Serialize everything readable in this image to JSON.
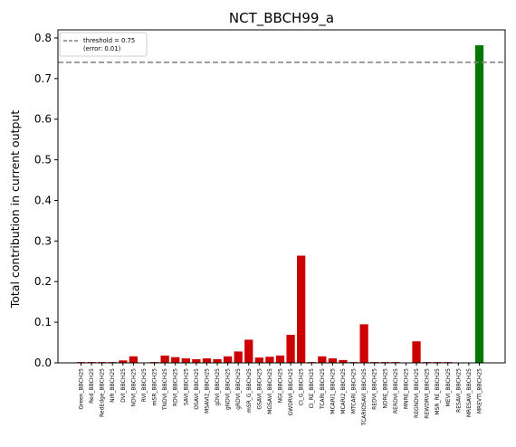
{
  "chart_data": {
    "type": "bar",
    "title": "NCT_BBCH99_a",
    "xlabel": "",
    "ylabel": "Total contribution in current output",
    "ylim": [
      0,
      0.82
    ],
    "yticks": [
      0.0,
      0.1,
      0.2,
      0.3,
      0.4,
      0.5,
      0.6,
      0.7,
      0.8
    ],
    "ytick_labels": [
      "0.0",
      "0.1",
      "0.2",
      "0.3",
      "0.4",
      "0.5",
      "0.6",
      "0.7",
      "0.8"
    ],
    "grid": false,
    "legend": {
      "placement": "top-left",
      "entries": [
        "threshold = 0.75",
        "(error: 0.01)"
      ]
    },
    "threshold": {
      "value": 0.74,
      "style": "dashed",
      "color": "#808080"
    },
    "colors": {
      "below": "#cc0000",
      "above": "#007700"
    },
    "categories": [
      "Green_BBCH25",
      "Red_BBCH25",
      "RedEdge_BBCH25",
      "NIR_BBCH25",
      "DVI_BBCH25",
      "NDVI_BBCH25",
      "RVI_BBCH25",
      "mSR_BBCH25",
      "TNDVI_BBCH25",
      "RDVI_BBCH25",
      "SAVI_BBCH25",
      "OSAVI_BBCH25",
      "MSAVI2_BBCH25",
      "gDVI_BBCH25",
      "gNDVI_BBCH25",
      "gRDVI_BBCH25",
      "mSR_G_BBCH25",
      "GSAVI_BBCH25",
      "MGSAVI_BBCH25",
      "NGI_BBCH25",
      "GWDRVI_BBCH25",
      "CI_G_BBCH25",
      "CI_RE_BBCH25",
      "TCARI_BBCH25",
      "MCARI1_BBCH25",
      "MCARI2_BBCH25",
      "MTCARI_BBCH25",
      "TCARIOSAVI_BBCH25",
      "REDVI_BBCH25",
      "NDRE_BBCH25",
      "RERDVI_BBCH25",
      "MNRE_BBCH25",
      "REGNDVI_BBCH25",
      "REWDRVI_BBCH25",
      "MSR_RE_BBCH25",
      "MEVI_BBCH25",
      "RESAVI_BBCH25",
      "MRESAVI_BBCH25",
      "MREVTI_BBCH25"
    ],
    "values": [
      0.002,
      0.002,
      0.002,
      0.002,
      0.006,
      0.016,
      0.001,
      0.002,
      0.018,
      0.014,
      0.011,
      0.009,
      0.011,
      0.009,
      0.016,
      0.028,
      0.057,
      0.013,
      0.015,
      0.018,
      0.069,
      0.264,
      0.002,
      0.016,
      0.011,
      0.007,
      0.002,
      0.095,
      0.002,
      0.002,
      0.002,
      0.001,
      0.053,
      0.002,
      0.002,
      0.002,
      0.001,
      0.001,
      0.782
    ]
  }
}
